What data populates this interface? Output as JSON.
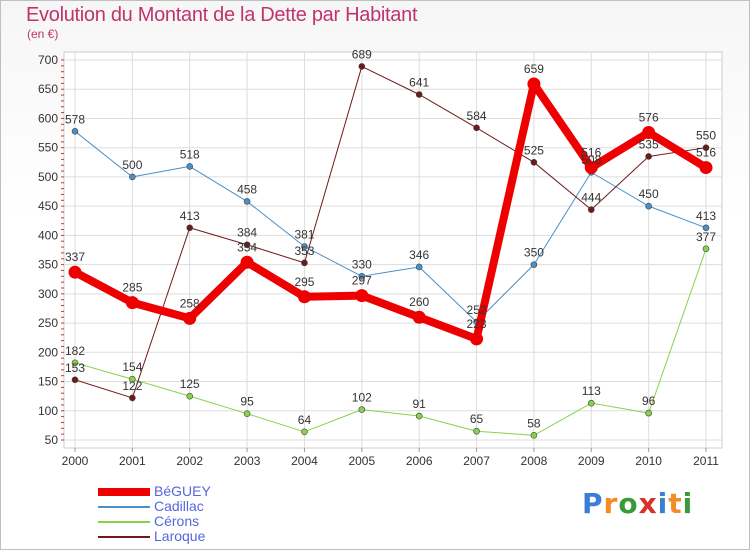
{
  "title": "Evolution du Montant de la Dette par Habitant",
  "subtitle": "(en €)",
  "brand": {
    "letters": [
      "P",
      "r",
      "o",
      "x",
      "i",
      "t",
      "i"
    ],
    "colors": [
      "#3a7fd5",
      "#f28c28",
      "#3a9a3a",
      "#d93025",
      "#3a7fd5",
      "#f28c28",
      "#3a9a3a"
    ]
  },
  "chart_data": {
    "type": "line",
    "categories": [
      "2000",
      "2001",
      "2002",
      "2003",
      "2004",
      "2005",
      "2006",
      "2007",
      "2008",
      "2009",
      "2010",
      "2011"
    ],
    "y_ticks": [
      "700",
      "650",
      "600",
      "550",
      "500",
      "450",
      "400",
      "350",
      "300",
      "250",
      "200",
      "150",
      "100",
      "50"
    ],
    "ylim": [
      50,
      700
    ],
    "grid": true,
    "legend_position": "bottom-left",
    "series": [
      {
        "name": "BéGUEY",
        "color": "#ee0000",
        "values": [
          337,
          285,
          258,
          354,
          295,
          297,
          260,
          223,
          659,
          516,
          576,
          516
        ],
        "labels": [
          "337",
          "285",
          "258",
          "354",
          "295",
          "297",
          "260",
          "223",
          "659",
          "516",
          "576",
          "516"
        ]
      },
      {
        "name": "Cadillac",
        "color": "#4a90c8",
        "values": [
          578,
          500,
          518,
          458,
          381,
          330,
          346,
          252,
          350,
          508,
          450,
          413
        ],
        "labels": [
          "578",
          "500",
          "518",
          "458",
          "381",
          "330",
          "346",
          "252",
          "350",
          "508",
          "450",
          "413"
        ]
      },
      {
        "name": "Cérons",
        "color": "#86d34a",
        "values": [
          182,
          154,
          125,
          95,
          64,
          102,
          91,
          65,
          58,
          113,
          96,
          377
        ],
        "labels": [
          "182",
          "154",
          "125",
          "95",
          "64",
          "102",
          "91",
          "65",
          "58",
          "113",
          "96",
          "377"
        ]
      },
      {
        "name": "Laroque",
        "color": "#6e1a1a",
        "values": [
          153,
          122,
          413,
          384,
          353,
          689,
          641,
          584,
          525,
          444,
          535,
          550
        ],
        "labels": [
          "153",
          "122",
          "413",
          "384",
          "353",
          "689",
          "641",
          "584",
          "525",
          "444",
          "535",
          "550"
        ]
      }
    ]
  }
}
